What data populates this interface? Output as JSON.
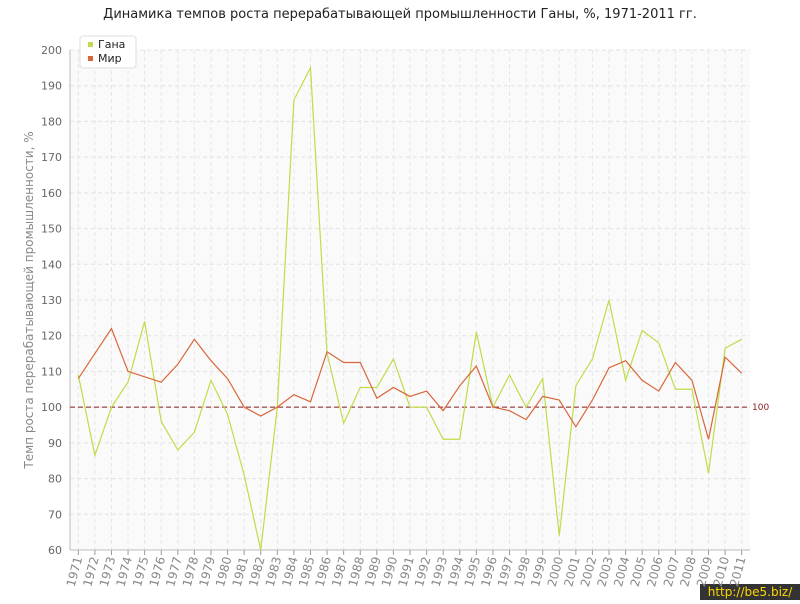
{
  "chart_data": {
    "type": "line",
    "title": "Динамика темпов роста перерабатывающей промышленности Ганы, %, 1971-2011 гг.",
    "y_label": "Темп роста перерабатывающей промышленности, %",
    "categories": [
      "1971",
      "1972",
      "1973",
      "1974",
      "1975",
      "1976",
      "1977",
      "1978",
      "1979",
      "1980",
      "1981",
      "1982",
      "1983",
      "1984",
      "1985",
      "1986",
      "1987",
      "1988",
      "1989",
      "1990",
      "1991",
      "1992",
      "1993",
      "1994",
      "1995",
      "1996",
      "1997",
      "1998",
      "1999",
      "2000",
      "2001",
      "2002",
      "2003",
      "2004",
      "2005",
      "2006",
      "2007",
      "2008",
      "2009",
      "2010",
      "2011"
    ],
    "series": [
      {
        "name": "Гана",
        "color": "#bfdc4a",
        "values": [
          109,
          86.5,
          100,
          107,
          124,
          96,
          88,
          93,
          107.5,
          98,
          81,
          60,
          100,
          186,
          195,
          115,
          95.5,
          105.5,
          105.5,
          113.5,
          100,
          100,
          91,
          91,
          121,
          100,
          109,
          100,
          108,
          64,
          106,
          113.5,
          130,
          107.5,
          121.5,
          118,
          105,
          105,
          81.5,
          116.5,
          119
        ]
      },
      {
        "name": "Мир",
        "color": "#d9663a",
        "values": [
          108,
          115,
          122,
          110,
          108.5,
          107,
          112,
          119,
          113,
          108,
          100,
          97.5,
          100,
          103.5,
          101.5,
          115.5,
          112.5,
          112.5,
          102.5,
          105.5,
          103,
          104.5,
          99,
          106,
          111.5,
          100,
          99,
          96.5,
          103,
          102,
          94.5,
          102,
          111,
          113,
          107.5,
          104.5,
          112.5,
          107.5,
          91,
          114,
          109.5
        ]
      }
    ],
    "ylim": [
      60,
      200
    ],
    "yticks": [
      60,
      70,
      80,
      90,
      100,
      110,
      120,
      130,
      140,
      150,
      160,
      170,
      180,
      190,
      200
    ],
    "grid": true,
    "legend": "top-left",
    "reference_line": 100,
    "reference_color": "#8b1a1a",
    "watermark": "http://be5.biz/"
  }
}
